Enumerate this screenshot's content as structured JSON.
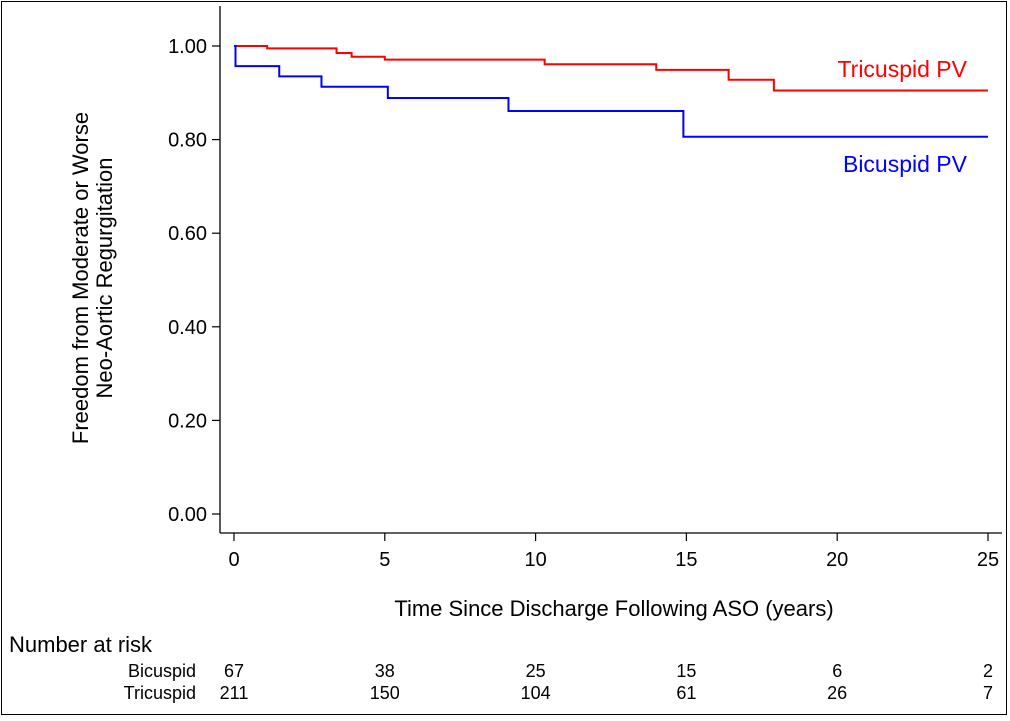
{
  "chart_data": {
    "type": "line",
    "step": true,
    "title": "",
    "xlabel": "Time Since Discharge Following ASO (years)",
    "ylabel_lines": [
      "Freedom from Moderate or Worse",
      "Neo-Aortic Regurgitation"
    ],
    "xlim": [
      0,
      25
    ],
    "ylim": [
      0,
      1
    ],
    "x_ticks": [
      "0",
      "5",
      "10",
      "15",
      "20",
      "25"
    ],
    "y_ticks": [
      "0.00",
      "0.20",
      "0.40",
      "0.60",
      "0.80",
      "1.00"
    ],
    "grid": false,
    "series": [
      {
        "name": "Tricuspid PV",
        "color": "#ff0000",
        "points": [
          [
            0,
            1.0
          ],
          [
            1.1,
            0.995
          ],
          [
            3.4,
            0.985
          ],
          [
            3.9,
            0.977
          ],
          [
            5.0,
            0.971
          ],
          [
            10.3,
            0.961
          ],
          [
            14.0,
            0.949
          ],
          [
            16.4,
            0.928
          ],
          [
            17.9,
            0.905
          ],
          [
            25.0,
            0.905
          ]
        ]
      },
      {
        "name": "Bicuspid PV",
        "color": "#0000ff",
        "points": [
          [
            0,
            1.0
          ],
          [
            0.05,
            0.957
          ],
          [
            1.5,
            0.935
          ],
          [
            2.9,
            0.913
          ],
          [
            5.1,
            0.889
          ],
          [
            9.1,
            0.861
          ],
          [
            14.9,
            0.806
          ],
          [
            25.0,
            0.806
          ]
        ]
      }
    ],
    "risk_table": {
      "heading": "Number at risk",
      "rows": [
        {
          "label": "Bicuspid",
          "counts": [
            "67",
            "38",
            "25",
            "15",
            "6",
            "2"
          ]
        },
        {
          "label": "Tricuspid",
          "counts": [
            "211",
            "150",
            "104",
            "61",
            "26",
            "7"
          ]
        }
      ]
    }
  }
}
